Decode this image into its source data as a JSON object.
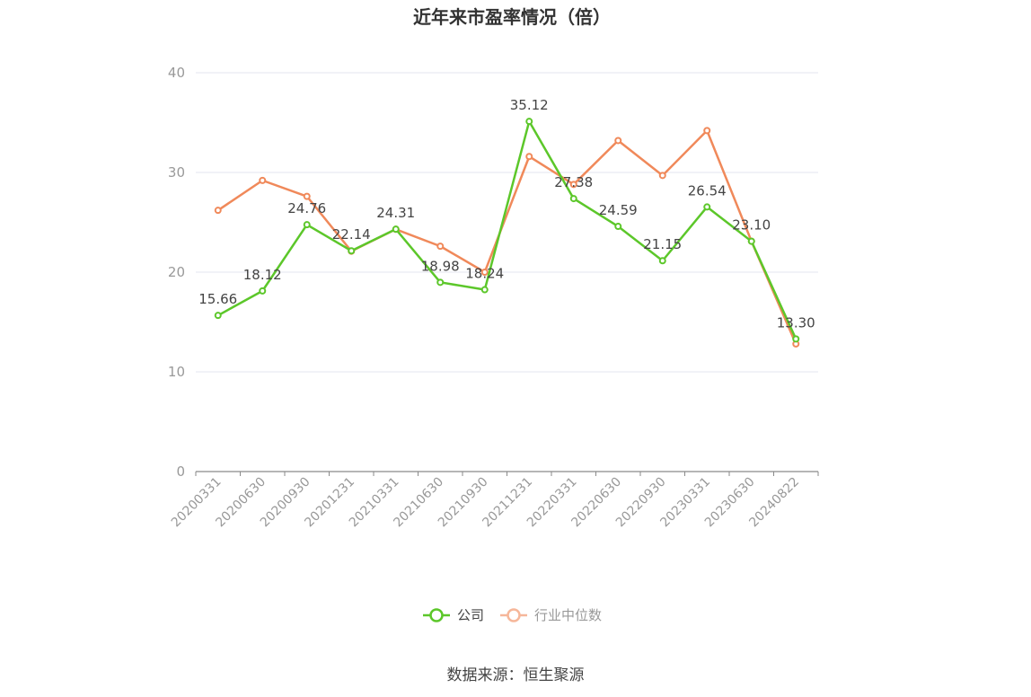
{
  "chart_data": {
    "type": "line",
    "title": "近年来市盈率情况（倍）",
    "categories": [
      "20200331",
      "20200630",
      "20200930",
      "20201231",
      "20210331",
      "20210630",
      "20210930",
      "20211231",
      "20220331",
      "20220630",
      "20220930",
      "20230331",
      "20230630",
      "20240822"
    ],
    "series": [
      {
        "name": "公司",
        "color": "#5cc72a",
        "values": [
          15.66,
          18.12,
          24.76,
          22.14,
          24.31,
          18.98,
          18.24,
          35.12,
          27.38,
          24.59,
          21.15,
          26.54,
          23.1,
          13.3
        ],
        "labels": [
          "15.66",
          "18.12",
          "24.76",
          "22.14",
          "24.31",
          "18.98",
          "18.24",
          "35.12",
          "27.38",
          "24.59",
          "21.15",
          "26.54",
          "23.10",
          "13.30"
        ]
      },
      {
        "name": "行业中位数",
        "color": "#f0895a",
        "values": [
          26.2,
          29.2,
          27.6,
          22.1,
          24.3,
          22.6,
          20.0,
          31.6,
          28.8,
          33.2,
          29.7,
          34.2,
          23.1,
          12.8
        ]
      }
    ],
    "ylim": [
      0,
      40
    ],
    "yticks": [
      "0",
      "10",
      "20",
      "30",
      "40"
    ],
    "grid": true,
    "legend_position": "bottom",
    "source": "数据来源：恒生聚源"
  }
}
